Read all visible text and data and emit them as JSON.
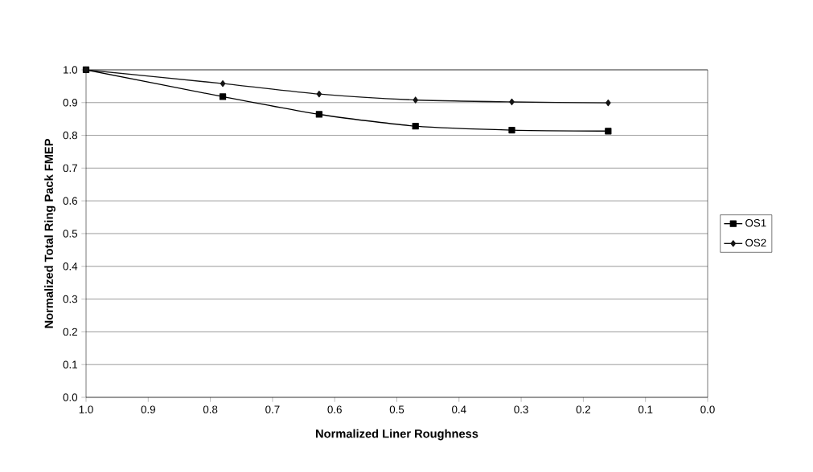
{
  "chart_data": {
    "type": "line",
    "xlabel": "Normalized Liner Roughness",
    "ylabel": "Normalized Total Ring Pack FMEP",
    "x": [
      1.0,
      0.78,
      0.625,
      0.47,
      0.315,
      0.16
    ],
    "series": [
      {
        "name": "OS1",
        "color": "#000000",
        "marker": "square",
        "values": [
          1.0,
          0.918,
          0.864,
          0.828,
          0.816,
          0.813
        ]
      },
      {
        "name": "OS2",
        "color": "#141414",
        "marker": "diamond",
        "values": [
          1.0,
          0.958,
          0.926,
          0.908,
          0.902,
          0.899
        ]
      }
    ],
    "xlim": [
      1.0,
      0.0
    ],
    "ylim": [
      0.0,
      1.0
    ],
    "xticks": [
      {
        "value": 1.0,
        "label": "1.0"
      },
      {
        "value": 0.9,
        "label": "0.9"
      },
      {
        "value": 0.8,
        "label": "0.8"
      },
      {
        "value": 0.7,
        "label": "0.7"
      },
      {
        "value": 0.6,
        "label": "0.6"
      },
      {
        "value": 0.5,
        "label": "0.5"
      },
      {
        "value": 0.4,
        "label": "0.4"
      },
      {
        "value": 0.3,
        "label": "0.3"
      },
      {
        "value": 0.2,
        "label": "0.2"
      },
      {
        "value": 0.1,
        "label": "0.1"
      },
      {
        "value": 0.0,
        "label": "0.0"
      }
    ],
    "yticks": [
      {
        "value": 0.0,
        "label": "0.0"
      },
      {
        "value": 0.1,
        "label": "0.1"
      },
      {
        "value": 0.2,
        "label": "0.2"
      },
      {
        "value": 0.3,
        "label": "0.3"
      },
      {
        "value": 0.4,
        "label": "0.4"
      },
      {
        "value": 0.5,
        "label": "0.5"
      },
      {
        "value": 0.6,
        "label": "0.6"
      },
      {
        "value": 0.7,
        "label": "0.7"
      },
      {
        "value": 0.8,
        "label": "0.8"
      },
      {
        "value": 0.9,
        "label": "0.9"
      },
      {
        "value": 1.0,
        "label": "1.0"
      }
    ],
    "grid": "y",
    "legend": "right",
    "line_style": "solid"
  }
}
